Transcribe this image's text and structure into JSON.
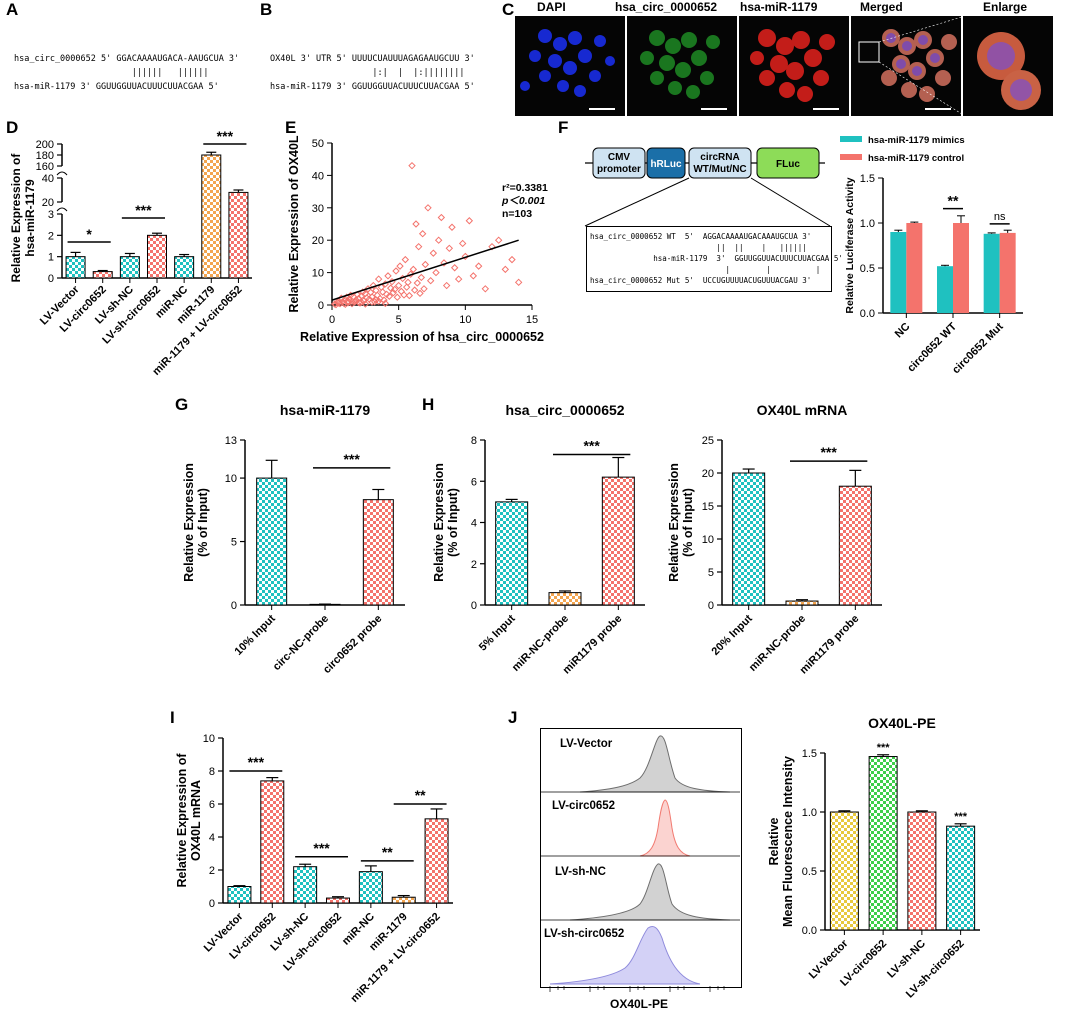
{
  "panels": {
    "A": "A",
    "B": "B",
    "C": "C",
    "D": "D",
    "E": "E",
    "F": "F",
    "G": "G",
    "H": "H",
    "I": "I",
    "J": "J"
  },
  "colors": {
    "teal": "#1fc1c0",
    "salmon": "#f4736c",
    "orange": "#f3a550",
    "yellow": "#e8c93e",
    "green": "#3ecf4a",
    "gray": "#9e9e9e",
    "pink": "#f5a3a0",
    "lavender": "#b7b2f0"
  },
  "panelA": {
    "line1": "hsa_circ_0000652 5' GGACAAAAUGACA-AAUGCUA 3'",
    "line2": "                       ||||||   ||||||",
    "line3": "hsa-miR-1179 3' GGUUGGUUACUUUCUUACGAA 5'"
  },
  "panelB": {
    "line1": "OX40L 3' UTR 5' UUUUCUAUUUAGAGAAUGCUU 3'",
    "line2": "                    |:|  |  |:||||||||",
    "line3": "hsa-miR-1179 3' GGUUGGUUACUUUCUUACGAA 5'"
  },
  "panelC": {
    "labels": [
      "DAPI",
      "hsa_circ_0000652",
      "hsa-miR-1179",
      "Merged",
      "Enlarge"
    ]
  },
  "panelF": {
    "construct": {
      "cmv": "CMV\npromoter",
      "hrluc": "hRLuc",
      "circ": "circRNA\nWT/Mut/NC",
      "fluc": "FLuc"
    },
    "seq": {
      "l1": "hsa_circ_0000652 WT  5'  AGGACAAAAUGACAAAUGCUA 3'",
      "l2": "                            ||  ||    |   ||||||",
      "l3": "              hsa-miR-1179  3'  GGUUGGUUACUUUCUUACGAA 5'",
      "l4": "                              |        |          |",
      "l5": "hsa_circ_0000652 Mut 5'  UCCUGUUUUACUGUUUACGAU 3'"
    }
  },
  "panelJ_flow": {
    "samples": [
      "LV-Vector",
      "LV-circ0652",
      "LV-sh-NC",
      "LV-sh-circ0652"
    ],
    "xlabel": "OX40L-PE"
  },
  "chart_data": [
    {
      "id": "D",
      "type": "bar",
      "ylabel": "Relative Expression of hsa-miR-1179",
      "categories": [
        "LV-Vector",
        "LV-circ0652",
        "LV-sh-NC",
        "LV-sh-circ0652",
        "miR-NC",
        "miR-1179",
        "miR-1179 + LV-circ0652"
      ],
      "values": [
        1.0,
        0.3,
        1.0,
        2.0,
        1.0,
        180,
        28
      ],
      "errors": [
        0.2,
        0.05,
        0.15,
        0.1,
        0.1,
        5,
        2
      ],
      "yticks": [
        "0",
        "1",
        "2",
        "3",
        "20",
        "40",
        "160",
        "180",
        "200"
      ],
      "sig": [
        {
          "label": "*"
        },
        {
          "label": "***"
        },
        {
          "label": "***"
        }
      ]
    },
    {
      "id": "E",
      "type": "scatter",
      "xlabel": "Relative Expression of hsa_circ_0000652",
      "ylabel": "Relative Expression of OX40L",
      "xlim": [
        0,
        15
      ],
      "ylim": [
        0,
        50
      ],
      "xticks": [
        "0",
        "5",
        "10",
        "15"
      ],
      "yticks": [
        "0",
        "10",
        "20",
        "30",
        "40",
        "50"
      ],
      "stats": {
        "r2": "r²=0.3381",
        "p": "p＜0.001",
        "n": "n=103"
      },
      "fit": {
        "x0": 0,
        "y0": 1.5,
        "x1": 14,
        "y1": 20
      },
      "points": [
        [
          0.2,
          0.3
        ],
        [
          0.4,
          0.8
        ],
        [
          0.5,
          1.2
        ],
        [
          0.6,
          0.4
        ],
        [
          0.7,
          2.1
        ],
        [
          0.8,
          1.0
        ],
        [
          0.9,
          0.5
        ],
        [
          1.0,
          1.6
        ],
        [
          1.1,
          2.4
        ],
        [
          1.2,
          0.7
        ],
        [
          1.3,
          1.9
        ],
        [
          1.4,
          3.0
        ],
        [
          1.5,
          1.1
        ],
        [
          1.6,
          2.6
        ],
        [
          1.7,
          0.9
        ],
        [
          1.8,
          1.5
        ],
        [
          1.9,
          3.2
        ],
        [
          2.0,
          2.0
        ],
        [
          2.1,
          0.6
        ],
        [
          2.2,
          2.8
        ],
        [
          2.3,
          4.0
        ],
        [
          2.4,
          1.3
        ],
        [
          2.5,
          3.5
        ],
        [
          2.6,
          2.2
        ],
        [
          2.7,
          5.0
        ],
        [
          2.8,
          1.8
        ],
        [
          2.9,
          3.9
        ],
        [
          3.0,
          2.5
        ],
        [
          3.1,
          6.0
        ],
        [
          3.2,
          1.0
        ],
        [
          3.3,
          4.5
        ],
        [
          3.4,
          3.0
        ],
        [
          3.5,
          8.0
        ],
        [
          3.6,
          2.0
        ],
        [
          3.7,
          5.5
        ],
        [
          3.8,
          4.0
        ],
        [
          3.9,
          1.5
        ],
        [
          4.0,
          6.5
        ],
        [
          4.1,
          3.3
        ],
        [
          4.2,
          9.0
        ],
        [
          4.3,
          2.7
        ],
        [
          4.4,
          5.2
        ],
        [
          4.5,
          7.2
        ],
        [
          4.6,
          3.8
        ],
        [
          4.7,
          4.8
        ],
        [
          4.8,
          10.5
        ],
        [
          4.9,
          2.4
        ],
        [
          5.0,
          6.0
        ],
        [
          5.1,
          12.0
        ],
        [
          5.2,
          4.2
        ],
        [
          5.3,
          8.2
        ],
        [
          5.4,
          3.1
        ],
        [
          5.5,
          14.0
        ],
        [
          5.6,
          5.5
        ],
        [
          5.7,
          7.0
        ],
        [
          5.8,
          2.9
        ],
        [
          5.9,
          9.5
        ],
        [
          6.0,
          43.0
        ],
        [
          6.1,
          11.0
        ],
        [
          6.2,
          4.6
        ],
        [
          6.3,
          25.0
        ],
        [
          6.4,
          6.8
        ],
        [
          6.5,
          18.0
        ],
        [
          6.6,
          3.6
        ],
        [
          6.7,
          8.5
        ],
        [
          6.8,
          22.0
        ],
        [
          6.9,
          5.0
        ],
        [
          7.0,
          12.5
        ],
        [
          7.2,
          30.0
        ],
        [
          7.4,
          7.5
        ],
        [
          7.6,
          16.0
        ],
        [
          7.8,
          10.0
        ],
        [
          8.0,
          20.0
        ],
        [
          8.2,
          27.0
        ],
        [
          8.4,
          13.0
        ],
        [
          8.6,
          6.0
        ],
        [
          8.8,
          17.5
        ],
        [
          9.0,
          24.0
        ],
        [
          9.2,
          11.5
        ],
        [
          9.5,
          8.0
        ],
        [
          9.8,
          19.0
        ],
        [
          10.0,
          15.0
        ],
        [
          10.3,
          26.0
        ],
        [
          10.6,
          9.0
        ],
        [
          11.0,
          12.0
        ],
        [
          11.5,
          5.0
        ],
        [
          12.0,
          18.0
        ],
        [
          12.5,
          20.0
        ],
        [
          13.0,
          11.0
        ],
        [
          13.5,
          14.0
        ],
        [
          14.0,
          7.0
        ],
        [
          0.3,
          0.1
        ],
        [
          0.5,
          0.6
        ],
        [
          1.0,
          0.2
        ],
        [
          1.5,
          0.4
        ],
        [
          2.0,
          0.8
        ],
        [
          2.5,
          0.3
        ],
        [
          3.0,
          0.9
        ],
        [
          3.5,
          1.2
        ],
        [
          4.0,
          0.5
        ],
        [
          1.2,
          1.2
        ],
        [
          2.2,
          0.9
        ],
        [
          3.3,
          1.6
        ]
      ]
    },
    {
      "id": "F",
      "type": "bar",
      "ylabel": "Relative Luciferase Activity",
      "categories": [
        "NC",
        "circ0652 WT",
        "circ0652 Mut"
      ],
      "series": [
        {
          "name": "hsa-miR-1179 mimics",
          "values": [
            0.9,
            0.52,
            0.88
          ],
          "errors": [
            0.02,
            0.01,
            0.01
          ]
        },
        {
          "name": "hsa-miR-1179 control",
          "values": [
            1.0,
            1.0,
            0.89
          ],
          "errors": [
            0.01,
            0.08,
            0.03
          ]
        }
      ],
      "ylim": [
        0,
        1.5
      ],
      "yticks": [
        "0.0",
        "0.5",
        "1.0",
        "1.5"
      ],
      "sig": [
        "**",
        "ns"
      ]
    },
    {
      "id": "G",
      "type": "bar",
      "title": "hsa-miR-1179",
      "ylabel": "Relative Expression (% of Input)",
      "categories": [
        "10% Input",
        "circ-NC-probe",
        "circ0652 probe"
      ],
      "values": [
        10.0,
        0.05,
        8.3
      ],
      "errors": [
        1.4,
        0.02,
        0.8
      ],
      "ylim": [
        0,
        13
      ],
      "yticks": [
        "0",
        "5",
        "10",
        "13"
      ],
      "sig": "***"
    },
    {
      "id": "H1",
      "type": "bar",
      "title": "hsa_circ_0000652",
      "ylabel": "Relative Expression (% of Input)",
      "categories": [
        "5% Input",
        "miR-NC-probe",
        "miR1179 probe"
      ],
      "values": [
        5.0,
        0.6,
        6.2
      ],
      "errors": [
        0.12,
        0.08,
        0.95
      ],
      "ylim": [
        0,
        8
      ],
      "yticks": [
        "0",
        "2",
        "4",
        "6",
        "8"
      ],
      "sig": "***"
    },
    {
      "id": "H2",
      "type": "bar",
      "title": "OX40L mRNA",
      "ylabel": "Relative Expression (% of Input)",
      "categories": [
        "20% Input",
        "miR-NC-probe",
        "miR1179 probe"
      ],
      "values": [
        20.0,
        0.6,
        18.0
      ],
      "errors": [
        0.6,
        0.2,
        2.4
      ],
      "ylim": [
        0,
        25
      ],
      "yticks": [
        "0",
        "5",
        "10",
        "15",
        "20",
        "25"
      ],
      "sig": "***"
    },
    {
      "id": "I",
      "type": "bar",
      "ylabel": "Relative Expression of OX40L mRNA",
      "categories": [
        "LV-Vector",
        "LV-circ0652",
        "LV-sh-NC",
        "LV-sh-circ0652",
        "miR-NC",
        "miR-1179",
        "miR-1179 + LV-circ0652"
      ],
      "values": [
        1.0,
        7.4,
        2.2,
        0.3,
        1.9,
        0.35,
        5.1
      ],
      "errors": [
        0.05,
        0.2,
        0.15,
        0.08,
        0.35,
        0.1,
        0.6
      ],
      "ylim": [
        0,
        10
      ],
      "yticks": [
        "0",
        "2",
        "4",
        "6",
        "8",
        "10"
      ],
      "sig": [
        "***",
        "***",
        "**",
        "**"
      ]
    },
    {
      "id": "J",
      "type": "bar",
      "title": "OX40L-PE",
      "ylabel": "Relative Mean Fluorescence Intensity",
      "categories": [
        "LV-Vector",
        "LV-circ0652",
        "LV-sh-NC",
        "LV-sh-circ0652"
      ],
      "values": [
        1.0,
        1.47,
        1.0,
        0.88
      ],
      "errors": [
        0.01,
        0.015,
        0.01,
        0.02
      ],
      "ylim": [
        0,
        1.5
      ],
      "yticks": [
        "0.0",
        "0.5",
        "1.0",
        "1.5"
      ],
      "sig": [
        "",
        "***",
        "",
        "***"
      ]
    }
  ]
}
